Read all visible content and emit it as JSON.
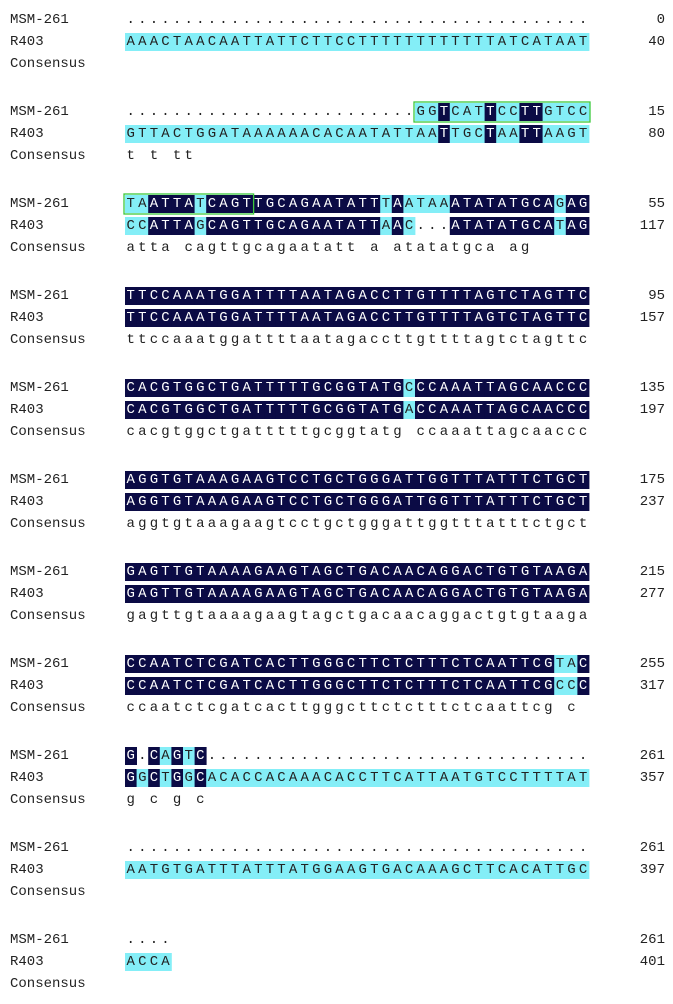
{
  "row_labels": [
    "MSM-261",
    "R403",
    "Consensus"
  ],
  "blocks": [
    {
      "rows": [
        {
          "sequence": "........................................",
          "end": 0
        },
        {
          "sequence": "AAACTAACAATTATTCTTCCTTTTTTTTTTTTATCATAAT",
          "end": 40
        }
      ]
    },
    {
      "rows": [
        {
          "sequence": ".........................GGTCATTCCTTGTCC",
          "end": 15
        },
        {
          "sequence": "GTTACTGGATAAAAAACACAATATTAATTGCTAATTAAGT",
          "end": 80
        }
      ],
      "consensus": "                           t   t  tt    "
    },
    {
      "rows": [
        {
          "sequence": "TAATTATCAGTTGCAGAATATTTAATAAATATATGCAGAG",
          "end": 55
        },
        {
          "sequence": "CCATTAGCAGTTGCAGAATATTAAC...ATATATGCATAG",
          "end": 117
        }
      ],
      "consensus": "  atta cagttgcagaatatt a    atatatgca ag"
    },
    {
      "rows": [
        {
          "sequence": "TTCCAAATGGATTTTAATAGACCTTGTTTTAGTCTAGTTC",
          "end": 95
        },
        {
          "sequence": "TTCCAAATGGATTTTAATAGACCTTGTTTTAGTCTAGTTC",
          "end": 157
        }
      ],
      "consensus": "ttccaaatggattttaatagaccttgttttagtctagttc"
    },
    {
      "rows": [
        {
          "sequence": "CACGTGGCTGATTTTTGCGGTATGCCCAAATTAGCAACCC",
          "end": 135
        },
        {
          "sequence": "CACGTGGCTGATTTTTGCGGTATGACCAAATTAGCAACCC",
          "end": 197
        }
      ],
      "consensus": "cacgtggctgatttttgcggtatg ccaaattagcaaccc"
    },
    {
      "rows": [
        {
          "sequence": "AGGTGTAAAGAAGTCCTGCTGGGATTGGTTTATTTCTGCT",
          "end": 175
        },
        {
          "sequence": "AGGTGTAAAGAAGTCCTGCTGGGATTGGTTTATTTCTGCT",
          "end": 237
        }
      ],
      "consensus": "aggtgtaaagaagtcctgctgggattggtttatttctgct"
    },
    {
      "rows": [
        {
          "sequence": "GAGTTGTAAAAGAAGTAGCTGACAACAGGACTGTGTAAGA",
          "end": 215
        },
        {
          "sequence": "GAGTTGTAAAAGAAGTAGCTGACAACAGGACTGTGTAAGA",
          "end": 277
        }
      ],
      "consensus": "gagttgtaaaagaagtagctgacaacaggactgtgtaaga"
    },
    {
      "rows": [
        {
          "sequence": "CCAATCTCGATCACTTGGGCTTCTCTTTCTCAATTCGTAC",
          "end": 255
        },
        {
          "sequence": "CCAATCTCGATCACTTGGGCTTCTCTTTCTCAATTCGCCC",
          "end": 317
        }
      ],
      "consensus": "ccaatctcgatcacttgggcttctctttctcaattcg  c"
    },
    {
      "rows": [
        {
          "sequence": "G.CAGTC.................................",
          "end": 261
        },
        {
          "sequence": "GGCTGGCACACCACAAACACCTTCATTAATGTCCTTTTAT",
          "end": 357
        }
      ],
      "consensus": "g c g c"
    },
    {
      "rows": [
        {
          "sequence": "........................................",
          "end": 261
        },
        {
          "sequence": "AATGTGATTTATTTATGGAAGTGACAAAGCTTCACATTGC",
          "end": 397
        }
      ]
    },
    {
      "rows": [
        {
          "sequence": "....",
          "end": 261
        },
        {
          "sequence": "ACCA",
          "end": 401
        }
      ]
    }
  ]
}
